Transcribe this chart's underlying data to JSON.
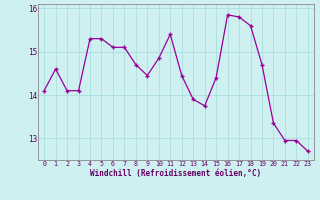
{
  "x": [
    0,
    1,
    2,
    3,
    4,
    5,
    6,
    7,
    8,
    9,
    10,
    11,
    12,
    13,
    14,
    15,
    16,
    17,
    18,
    19,
    20,
    21,
    22,
    23
  ],
  "y": [
    14.1,
    14.6,
    14.1,
    14.1,
    15.3,
    15.3,
    15.1,
    15.1,
    14.7,
    14.45,
    14.85,
    15.4,
    14.45,
    13.9,
    13.75,
    14.4,
    15.85,
    15.8,
    15.6,
    14.7,
    13.35,
    12.95,
    12.95,
    12.7
  ],
  "line_color": "#990099",
  "marker": "+",
  "bg_color": "#cff0f0",
  "grid_color": "#aadddd",
  "xlabel": "Windchill (Refroidissement éolien,°C)",
  "xlabel_color": "#660066",
  "axis_color": "#660066",
  "ylim": [
    12.5,
    16.1
  ],
  "xlim": [
    -0.5,
    23.5
  ],
  "yticks": [
    13,
    14,
    15,
    16
  ],
  "xticks": [
    0,
    1,
    2,
    3,
    4,
    5,
    6,
    7,
    8,
    9,
    10,
    11,
    12,
    13,
    14,
    15,
    16,
    17,
    18,
    19,
    20,
    21,
    22,
    23
  ]
}
